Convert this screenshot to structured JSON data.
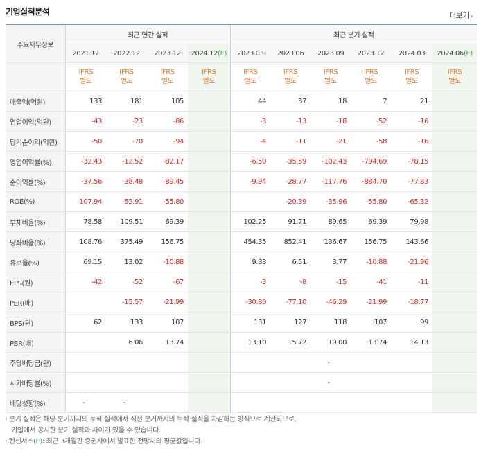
{
  "section_title": "기업실적분석",
  "more_label": "더보기",
  "more_arrow": "›",
  "header": {
    "row_head": "주요재무정보",
    "annual_group": "최근 연간 실적",
    "quarter_group": "최근 분기 실적",
    "periods": [
      "2021.12",
      "2022.12",
      "2023.12",
      "2024.12",
      "2023.03",
      "2023.06",
      "2023.09",
      "2023.12",
      "2024.03",
      "2024.06"
    ],
    "estimate_mark": "(E)",
    "ifrs_line1": "IFRS",
    "ifrs_line2": "별도"
  },
  "rows": [
    {
      "label": "매출액(억원)",
      "values": [
        "133",
        "181",
        "105",
        "",
        "44",
        "37",
        "18",
        "7",
        "21",
        ""
      ]
    },
    {
      "label": "영업이익(억원)",
      "values": [
        "-43",
        "-23",
        "-86",
        "",
        "-3",
        "-13",
        "-18",
        "-52",
        "-16",
        ""
      ]
    },
    {
      "label": "당기순이익(억원)",
      "values": [
        "-50",
        "-70",
        "-94",
        "",
        "-4",
        "-11",
        "-21",
        "-58",
        "-16",
        ""
      ]
    },
    {
      "label": "영업이익률(%)",
      "values": [
        "-32.43",
        "-12.52",
        "-82.17",
        "",
        "-6.50",
        "-35.59",
        "-102.43",
        "-794.69",
        "-78.15",
        ""
      ]
    },
    {
      "label": "순이익률(%)",
      "values": [
        "-37.56",
        "-38.48",
        "-89.45",
        "",
        "-9.94",
        "-28.77",
        "-117.76",
        "-884.70",
        "-77.83",
        ""
      ]
    },
    {
      "label": "ROE(%)",
      "values": [
        "-107.94",
        "-52.91",
        "-55.80",
        "",
        "",
        "-20.39",
        "-35.96",
        "-55.80",
        "-65.32",
        ""
      ]
    },
    {
      "label": "부채비율(%)",
      "values": [
        "78.58",
        "109.51",
        "69.39",
        "",
        "102.25",
        "91.71",
        "89.65",
        "69.39",
        "79.98",
        ""
      ]
    },
    {
      "label": "당좌비율(%)",
      "values": [
        "108.76",
        "375.49",
        "156.75",
        "",
        "454.35",
        "852.41",
        "136.67",
        "156.75",
        "143.66",
        ""
      ]
    },
    {
      "label": "유보율(%)",
      "values": [
        "69.15",
        "13.02",
        "-10.88",
        "",
        "9.83",
        "6.51",
        "3.77",
        "-10.88",
        "-21.96",
        ""
      ]
    },
    {
      "label": "EPS(원)",
      "values": [
        "-42",
        "-52",
        "-67",
        "",
        "-3",
        "-8",
        "-15",
        "-41",
        "-11",
        ""
      ]
    },
    {
      "label": "PER(배)",
      "values": [
        "",
        "-15.57",
        "-21.99",
        "",
        "-30.80",
        "-77.10",
        "-46.29",
        "-21.99",
        "-18.77",
        ""
      ]
    },
    {
      "label": "BPS(원)",
      "values": [
        "62",
        "133",
        "107",
        "",
        "131",
        "127",
        "118",
        "107",
        "99",
        ""
      ]
    },
    {
      "label": "PBR(배)",
      "values": [
        "",
        "6.06",
        "13.74",
        "",
        "13.10",
        "15.72",
        "19.00",
        "13.74",
        "14.13",
        ""
      ]
    },
    {
      "label": "주당배당금(원)",
      "values": [
        "",
        "",
        "",
        "",
        "",
        "",
        "-",
        "",
        "",
        ""
      ]
    },
    {
      "label": "시가배당률(%)",
      "values": [
        "",
        "",
        "",
        "",
        "",
        "",
        "-",
        "",
        "",
        ""
      ]
    },
    {
      "label": "배당성향(%)",
      "values": [
        "-",
        "-",
        "",
        "",
        "",
        "",
        "",
        "",
        "",
        ""
      ]
    }
  ],
  "notes": {
    "line1": "분기 실적은 해당 분기까지의 누적 실적에서 직전 분기까지의 누적 실적을 차감하는 방식으로 계산되므로,",
    "line2": "기업에서 공시한 분기 실적과 차이가 있을 수 있습니다.",
    "line3_pre": "컨센서스",
    "line3_post": ": 최근 3개월간 증권사에서 발표한 전망치의 평균값입니다.",
    "bullet": "·"
  },
  "colors": {
    "negative": "#e8231f",
    "ifrs": "#e87c2d",
    "estimate_mark": "#4a9b54",
    "estimate_bg": "#eef6ed"
  }
}
